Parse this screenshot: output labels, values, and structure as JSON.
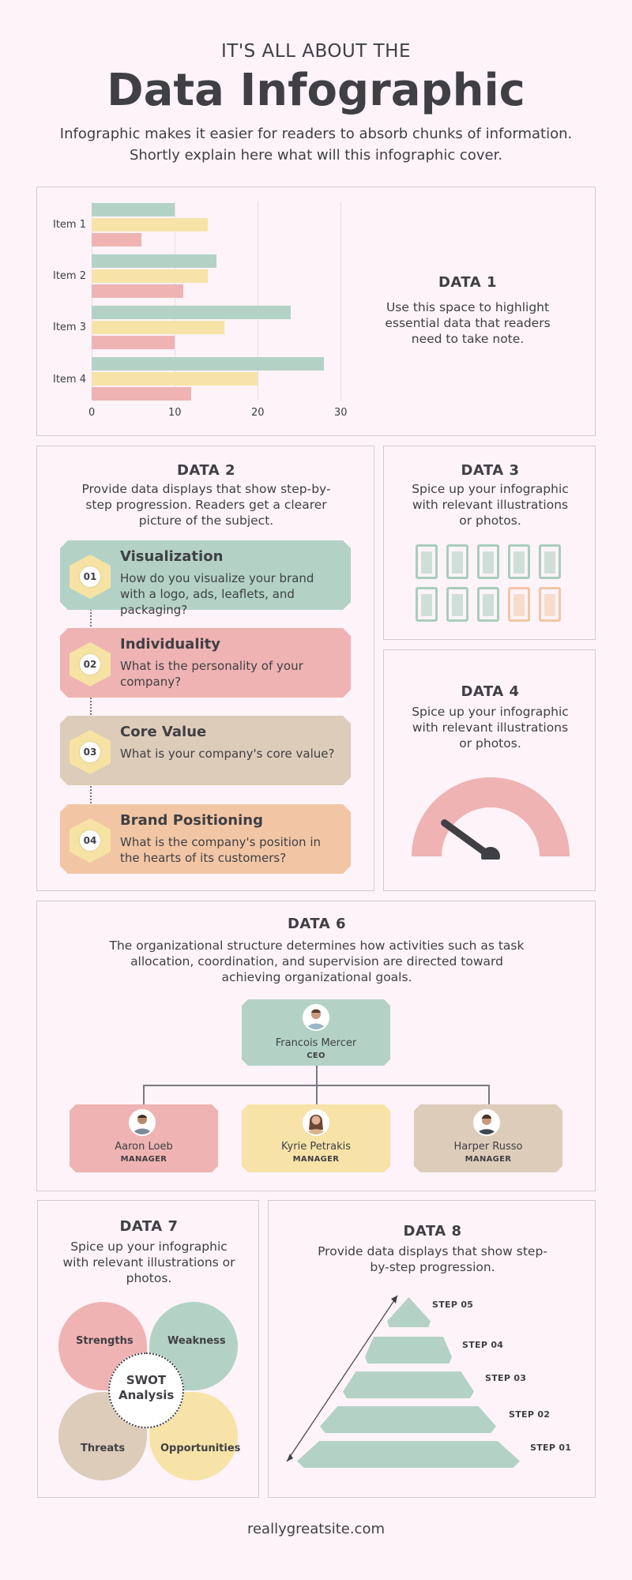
{
  "header": {
    "subtitle": "IT'S ALL ABOUT THE",
    "title": "Data Infographic",
    "intro": "Infographic makes it easier for readers to absorb chunks of information. Shortly explain here what will this infographic cover."
  },
  "data1": {
    "title": "DATA 1",
    "desc": "Use this space to highlight essential data that readers need to take note."
  },
  "chart_data": {
    "type": "bar",
    "orientation": "horizontal",
    "categories": [
      "Item 1",
      "Item 2",
      "Item 3",
      "Item 4"
    ],
    "series": [
      {
        "values": [
          10,
          15,
          24,
          28
        ],
        "color": "#b3d2c5"
      },
      {
        "values": [
          14,
          14,
          16,
          20
        ],
        "color": "#f7e3a8"
      },
      {
        "values": [
          6,
          11,
          10,
          12
        ],
        "color": "#efb3b3"
      }
    ],
    "xlim": [
      0,
      30
    ],
    "xticks": [
      "0",
      "10",
      "20",
      "30"
    ],
    "grid": true
  },
  "data2": {
    "title": "DATA 2",
    "desc": "Provide data displays that show step-by-step progression. Readers get a clearer picture of the subject.",
    "steps": [
      {
        "num": "01",
        "title": "Visualization",
        "desc": "How do you visualize your brand with a logo, ads, leaflets, and packaging?",
        "color": "#b3d2c5"
      },
      {
        "num": "02",
        "title": "Individuality",
        "desc": "What is the personality of your company?",
        "color": "#efb3b3"
      },
      {
        "num": "03",
        "title": "Core Value",
        "desc": "What is your company's core value?",
        "color": "#ddccba"
      },
      {
        "num": "04",
        "title": "Brand Positioning",
        "desc": "What is the company's position in the hearts of its customers?",
        "color": "#f2c6a5"
      }
    ]
  },
  "data3": {
    "title": "DATA 3",
    "desc": "Spice up your infographic with relevant illustrations or photos.",
    "glasses_total": 10,
    "glasses_highlighted": 2,
    "color_main": "#a8cdbd",
    "color_highlight": "#f2c6a5"
  },
  "data4": {
    "title": "DATA 4",
    "desc": "Spice up your infographic with relevant illustrations or photos.",
    "gauge_color": "#efb3b3",
    "needle_color": "#3f3f44",
    "gauge_value": 0.2
  },
  "data6": {
    "title": "DATA 6",
    "desc": "The organizational structure determines how activities such as task allocation, coordination, and supervision are directed toward achieving organizational goals.",
    "ceo": {
      "name": "Francois Mercer",
      "role": "CEO",
      "color": "#b3d2c5"
    },
    "managers": [
      {
        "name": "Aaron Loeb",
        "role": "MANAGER",
        "color": "#efb3b3"
      },
      {
        "name": "Kyrie Petrakis",
        "role": "MANAGER",
        "color": "#f7e3a8"
      },
      {
        "name": "Harper Russo",
        "role": "MANAGER",
        "color": "#ddccba"
      }
    ]
  },
  "data7": {
    "title": "DATA 7",
    "desc": "Spice up your infographic with relevant illustrations or photos.",
    "center": "SWOT Analysis",
    "strengths": "Strengths",
    "weakness": "Weakness",
    "threats": "Threats",
    "opportunities": "Opportunities"
  },
  "data8": {
    "title": "DATA 8",
    "desc": "Provide data displays that show step-by-step progression.",
    "steps": [
      "STEP 05",
      "STEP 04",
      "STEP 03",
      "STEP 02",
      "STEP 01"
    ],
    "color": "#b3d2c5"
  },
  "footer": {
    "site": "reallygreatsite.com"
  }
}
